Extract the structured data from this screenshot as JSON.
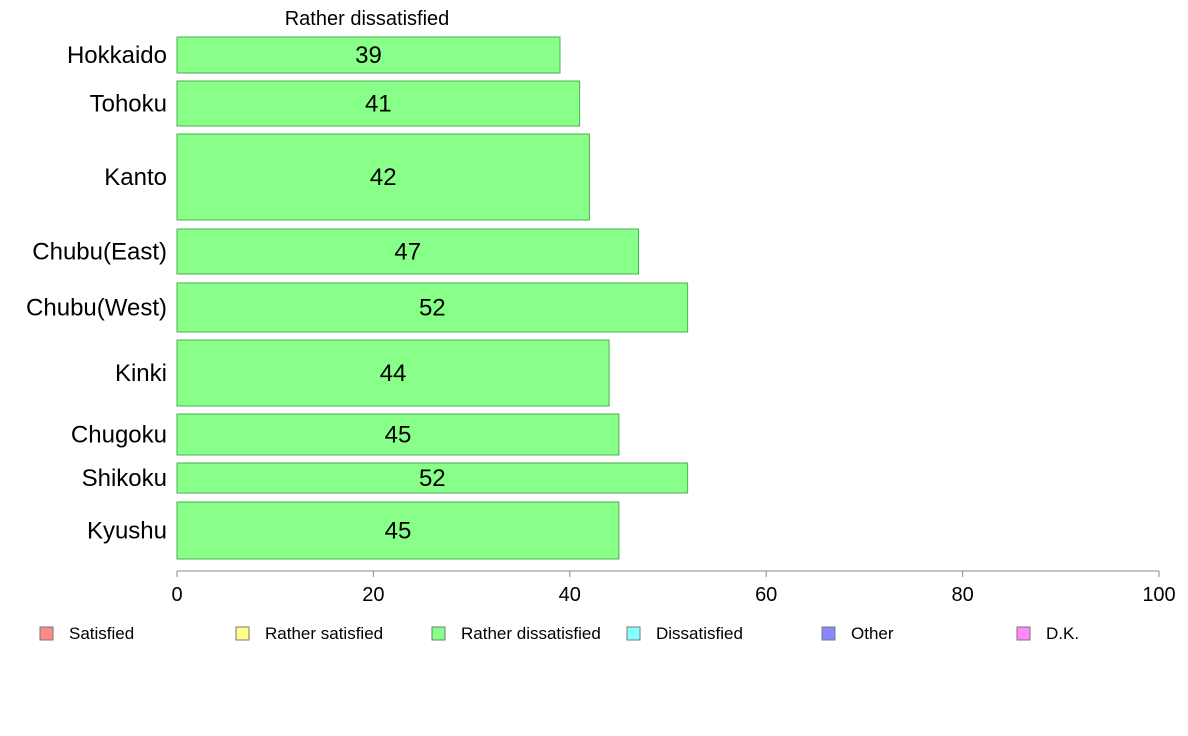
{
  "chart_data": {
    "type": "bar",
    "orientation": "horizontal",
    "title": "Rather dissatisfied",
    "categories": [
      "Hokkaido",
      "Tohoku",
      "Kanto",
      "Chubu(East)",
      "Chubu(West)",
      "Kinki",
      "Chugoku",
      "Shikoku",
      "Kyushu"
    ],
    "values": [
      39,
      41,
      42,
      47,
      52,
      44,
      45,
      52,
      45
    ],
    "data_labels": [
      "39",
      "41",
      "42",
      "47",
      "52",
      "44",
      "45",
      "52",
      "45"
    ],
    "xlim": [
      0,
      100
    ],
    "x_ticks": [
      0,
      20,
      40,
      60,
      80,
      100
    ],
    "x_tick_labels": [
      "0",
      "20",
      "40",
      "60",
      "80",
      "100"
    ],
    "bar_color": "#88ff88",
    "bar_edge_color": "#4caf50",
    "legend_placement": "bottom",
    "legend": [
      {
        "label": "Satisfied",
        "color": "#ff8888"
      },
      {
        "label": "Rather satisfied",
        "color": "#ffff88"
      },
      {
        "label": "Rather dissatisfied",
        "color": "#88ff88"
      },
      {
        "label": "Dissatisfied",
        "color": "#88ffff"
      },
      {
        "label": "Other",
        "color": "#8888ff"
      },
      {
        "label": "D.K.",
        "color": "#ff88ff"
      }
    ]
  }
}
